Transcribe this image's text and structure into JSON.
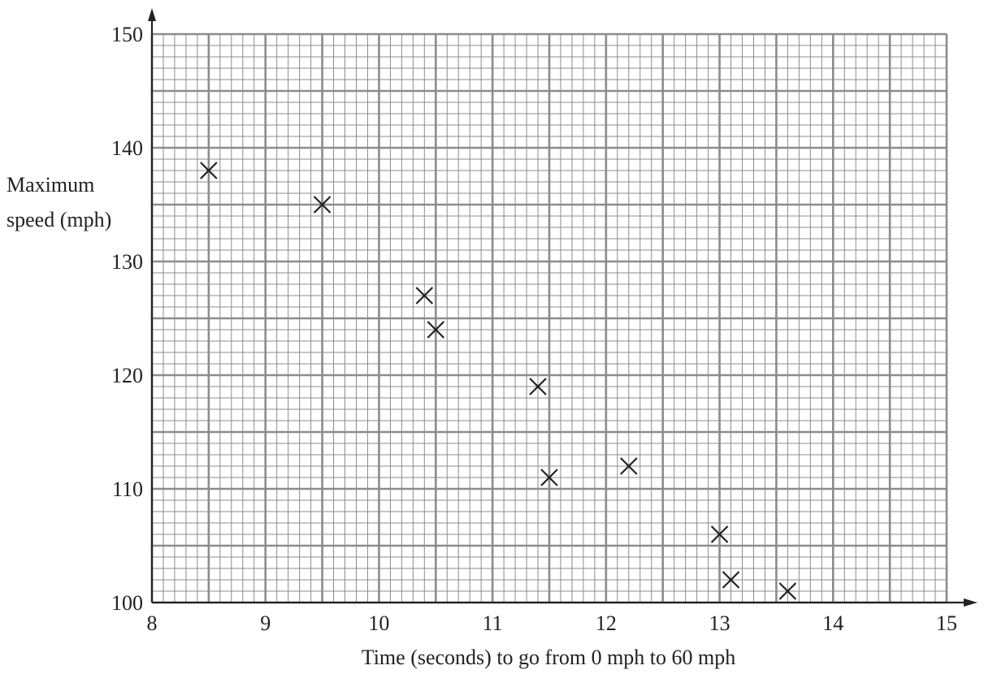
{
  "chart_data": {
    "type": "scatter",
    "title": "",
    "xlabel": "Time (seconds) to go from 0 mph to 60 mph",
    "ylabel_lines": [
      "Maximum",
      "speed (mph)"
    ],
    "xlim": [
      8,
      15
    ],
    "ylim": [
      100,
      150
    ],
    "x_ticks": [
      8,
      9,
      10,
      11,
      12,
      13,
      14,
      15
    ],
    "y_ticks": [
      100,
      110,
      120,
      130,
      140,
      150
    ],
    "grid": true,
    "marker": "x",
    "points": [
      {
        "x": 8.5,
        "y": 138
      },
      {
        "x": 9.5,
        "y": 135
      },
      {
        "x": 10.4,
        "y": 127
      },
      {
        "x": 10.5,
        "y": 124
      },
      {
        "x": 11.4,
        "y": 119
      },
      {
        "x": 11.5,
        "y": 111
      },
      {
        "x": 12.2,
        "y": 112
      },
      {
        "x": 13.0,
        "y": 106
      },
      {
        "x": 13.1,
        "y": 102
      },
      {
        "x": 13.6,
        "y": 101
      }
    ],
    "colors": {
      "grid": "#8c8c8c",
      "axis": "#222222",
      "marker": "#222222"
    }
  }
}
